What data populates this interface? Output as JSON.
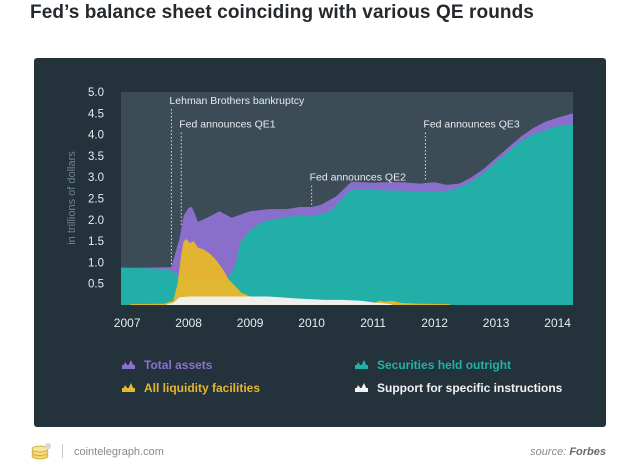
{
  "page": {
    "title": "Fed’s balance sheet coinciding with various QE rounds",
    "site": "cointelegraph.com",
    "source_prefix": "source:",
    "source_name": "Forbes"
  },
  "colors": {
    "panel_bg": "#24323c",
    "plot_bg": "#3b4c57",
    "total_assets": "#8c6fd0",
    "securities": "#1fb2a6",
    "liquidity": "#e6b72c",
    "support": "#f2f2f2",
    "text_light": "#e8ecef",
    "annotation_line": "#d6dde2"
  },
  "chart_data": {
    "type": "area",
    "title": "",
    "xlabel": "",
    "ylabel": "in trillions of dollars",
    "xlim": [
      2006.9,
      2014.25
    ],
    "ylim": [
      0,
      5.0
    ],
    "yticks": [
      "0.5",
      "1.0",
      "1.5",
      "2.0",
      "2.5",
      "3.0",
      "3.5",
      "4.0",
      "4.5",
      "5.0"
    ],
    "xticks": [
      "2007",
      "2008",
      "2009",
      "2010",
      "2011",
      "2012",
      "2013",
      "2014"
    ],
    "grid": false,
    "legend_position": "bottom",
    "series": [
      {
        "name": "Total assets",
        "color_key": "total_assets",
        "points": [
          [
            2006.9,
            0.87
          ],
          [
            2007.5,
            0.88
          ],
          [
            2007.72,
            0.89
          ],
          [
            2007.8,
            1.3
          ],
          [
            2007.85,
            1.55
          ],
          [
            2007.92,
            2.1
          ],
          [
            2008.0,
            2.28
          ],
          [
            2008.05,
            2.3
          ],
          [
            2008.1,
            2.15
          ],
          [
            2008.15,
            1.95
          ],
          [
            2008.3,
            2.05
          ],
          [
            2008.5,
            2.2
          ],
          [
            2008.7,
            2.05
          ],
          [
            2008.9,
            2.15
          ],
          [
            2009.0,
            2.2
          ],
          [
            2009.3,
            2.25
          ],
          [
            2009.6,
            2.25
          ],
          [
            2009.8,
            2.3
          ],
          [
            2010.0,
            2.3
          ],
          [
            2010.15,
            2.35
          ],
          [
            2010.4,
            2.55
          ],
          [
            2010.65,
            2.9
          ],
          [
            2010.8,
            2.88
          ],
          [
            2011.0,
            2.87
          ],
          [
            2011.2,
            2.88
          ],
          [
            2011.5,
            2.88
          ],
          [
            2011.75,
            2.85
          ],
          [
            2012.0,
            2.88
          ],
          [
            2012.2,
            2.82
          ],
          [
            2012.4,
            2.85
          ],
          [
            2012.6,
            3.0
          ],
          [
            2012.8,
            3.2
          ],
          [
            2013.0,
            3.45
          ],
          [
            2013.2,
            3.7
          ],
          [
            2013.4,
            3.95
          ],
          [
            2013.6,
            4.15
          ],
          [
            2013.8,
            4.3
          ],
          [
            2014.0,
            4.4
          ],
          [
            2014.2,
            4.48
          ],
          [
            2014.25,
            4.5
          ]
        ]
      },
      {
        "name": "Securities held outright",
        "color_key": "securities",
        "points": [
          [
            2006.9,
            0.88
          ],
          [
            2007.5,
            0.85
          ],
          [
            2007.7,
            0.82
          ],
          [
            2007.78,
            0.75
          ],
          [
            2007.85,
            0.7
          ],
          [
            2008.0,
            0.55
          ],
          [
            2008.2,
            0.5
          ],
          [
            2008.4,
            0.52
          ],
          [
            2008.6,
            0.55
          ],
          [
            2008.75,
            0.9
          ],
          [
            2008.85,
            1.5
          ],
          [
            2009.0,
            1.75
          ],
          [
            2009.2,
            1.95
          ],
          [
            2009.5,
            2.05
          ],
          [
            2009.8,
            2.1
          ],
          [
            2010.0,
            2.08
          ],
          [
            2010.3,
            2.2
          ],
          [
            2010.5,
            2.5
          ],
          [
            2010.65,
            2.72
          ],
          [
            2011.0,
            2.7
          ],
          [
            2011.5,
            2.68
          ],
          [
            2012.0,
            2.65
          ],
          [
            2012.3,
            2.7
          ],
          [
            2012.6,
            2.9
          ],
          [
            2012.8,
            3.1
          ],
          [
            2013.0,
            3.35
          ],
          [
            2013.2,
            3.6
          ],
          [
            2013.4,
            3.85
          ],
          [
            2013.6,
            4.0
          ],
          [
            2013.8,
            4.1
          ],
          [
            2014.0,
            4.2
          ],
          [
            2014.25,
            4.25
          ]
        ]
      },
      {
        "name": "All liquidity facilities",
        "color_key": "liquidity",
        "points": [
          [
            2007.05,
            0.02
          ],
          [
            2007.6,
            0.03
          ],
          [
            2007.75,
            0.1
          ],
          [
            2007.82,
            0.5
          ],
          [
            2007.88,
            1.2
          ],
          [
            2007.92,
            1.5
          ],
          [
            2007.97,
            1.55
          ],
          [
            2008.02,
            1.45
          ],
          [
            2008.08,
            1.5
          ],
          [
            2008.15,
            1.35
          ],
          [
            2008.25,
            1.3
          ],
          [
            2008.35,
            1.2
          ],
          [
            2008.45,
            1.05
          ],
          [
            2008.55,
            0.85
          ],
          [
            2008.65,
            0.6
          ],
          [
            2008.75,
            0.45
          ],
          [
            2008.85,
            0.3
          ],
          [
            2009.0,
            0.2
          ],
          [
            2009.2,
            0.12
          ],
          [
            2009.5,
            0.08
          ],
          [
            2009.8,
            0.05
          ],
          [
            2010.3,
            0.04
          ],
          [
            2011.0,
            0.03
          ],
          [
            2011.1,
            0.1
          ],
          [
            2011.2,
            0.08
          ],
          [
            2011.3,
            0.1
          ],
          [
            2011.45,
            0.05
          ],
          [
            2011.75,
            0.03
          ],
          [
            2012.25,
            0.02
          ]
        ]
      },
      {
        "name": "Support for specific instructions",
        "color_key": "support",
        "points": [
          [
            2007.65,
            0.02
          ],
          [
            2007.75,
            0.05
          ],
          [
            2007.85,
            0.18
          ],
          [
            2008.0,
            0.2
          ],
          [
            2008.5,
            0.2
          ],
          [
            2008.8,
            0.2
          ],
          [
            2009.3,
            0.2
          ],
          [
            2009.8,
            0.15
          ],
          [
            2010.2,
            0.12
          ],
          [
            2010.5,
            0.12
          ],
          [
            2010.8,
            0.1
          ],
          [
            2011.0,
            0.06
          ],
          [
            2011.3,
            0.02
          ]
        ]
      }
    ],
    "annotations": [
      {
        "label": "Lehman Brothers bankruptcy",
        "x": 2007.72,
        "y_top": 4.6
      },
      {
        "label": "Fed announces QE1",
        "x": 2007.88,
        "y_top": 4.05
      },
      {
        "label": "Fed announces QE2",
        "x": 2010.0,
        "y_top": 2.8
      },
      {
        "label": "Fed announces QE3",
        "x": 2011.85,
        "y_top": 4.05
      }
    ]
  }
}
